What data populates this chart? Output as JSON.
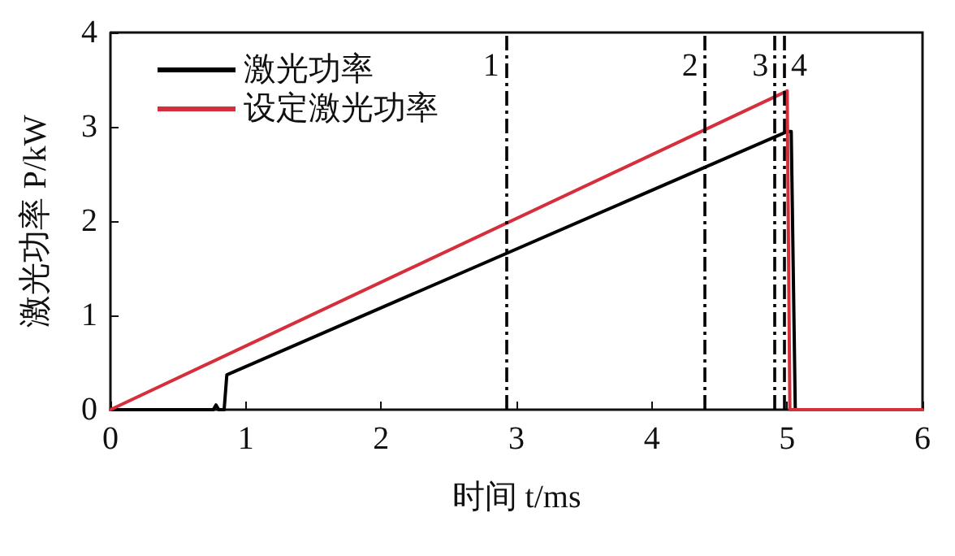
{
  "chart_data": {
    "type": "line",
    "xlabel": "时间 t/ms",
    "ylabel": "激光功率 P/kW",
    "xlim": [
      0,
      6
    ],
    "xticks": [
      0,
      1,
      2,
      3,
      4,
      5,
      6
    ],
    "ylim": [
      0,
      4
    ],
    "yticks": [
      0,
      1,
      2,
      3,
      4
    ],
    "grid": false,
    "legend": "top left",
    "marker": "none",
    "line_style": "solid",
    "series": [
      {
        "name": "激光功率",
        "color": "#000000",
        "x": [
          0,
          0.76,
          0.78,
          0.8,
          0.84,
          0.86,
          5.0,
          5.03,
          5.06,
          6
        ],
        "values": [
          0,
          0,
          0.05,
          0,
          0,
          0.37,
          2.95,
          2.95,
          0,
          0
        ]
      },
      {
        "name": "设定激光功率",
        "color": "#d62f3c",
        "x": [
          0,
          5.0,
          5.02,
          6
        ],
        "values": [
          0,
          3.38,
          0,
          0
        ]
      }
    ],
    "ref_lines": [
      {
        "axis": "x",
        "value": 2.92,
        "color": "#000000",
        "line_style": "dashed"
      },
      {
        "axis": "x",
        "value": 4.39,
        "color": "#000000",
        "line_style": "dashed"
      },
      {
        "axis": "x",
        "value": 4.91,
        "color": "#000000",
        "line_style": "dashed"
      },
      {
        "axis": "x",
        "value": 4.98,
        "color": "#000000",
        "line_style": "dashed"
      }
    ],
    "annotations": [
      {
        "text": "1",
        "x": 2.92,
        "y": 3.65
      },
      {
        "text": "2",
        "x": 4.39,
        "y": 3.65
      },
      {
        "text": "3",
        "x": 4.91,
        "y": 3.65
      },
      {
        "text": "4",
        "x": 4.98,
        "y": 3.65
      }
    ]
  }
}
